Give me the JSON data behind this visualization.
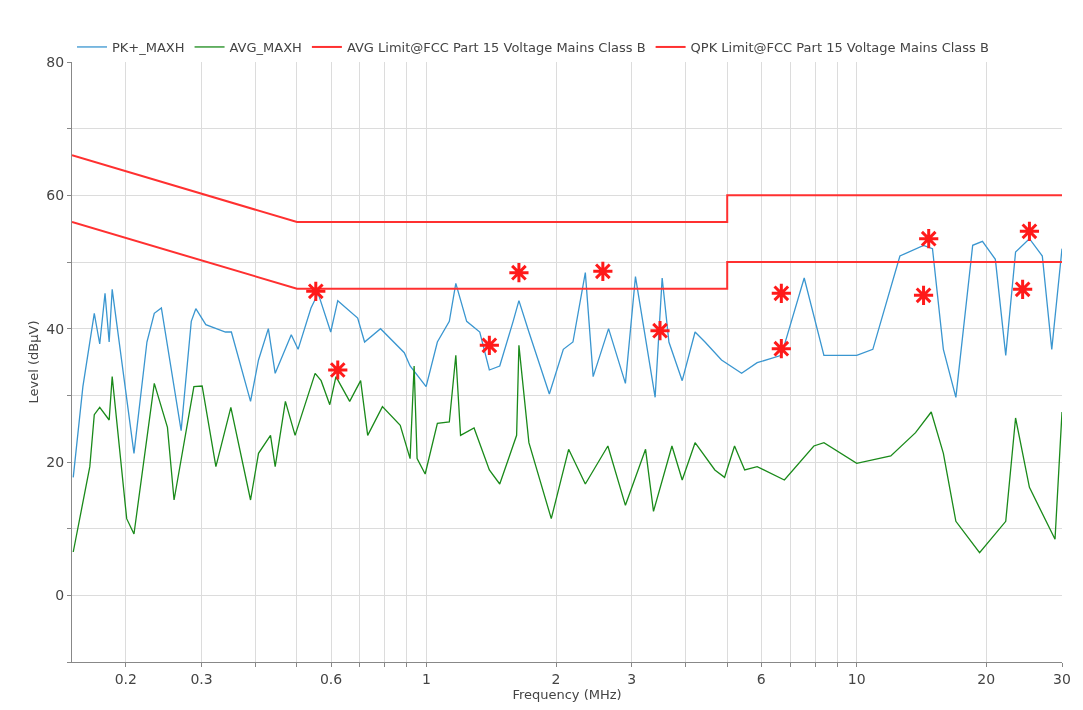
{
  "chart_data": {
    "type": "line",
    "xlabel": "Frequency (MHz)",
    "ylabel": "Level (dBµV)",
    "log": "x",
    "grid": true,
    "legend": "top left",
    "xlim": [
      0.15,
      30
    ],
    "ylim": [
      -10,
      80
    ],
    "xticks": [
      {
        "value": 0.2,
        "label": "0.2"
      },
      {
        "value": 0.3,
        "label": "0.3"
      },
      {
        "value": 0.4,
        "label": null
      },
      {
        "value": 0.5,
        "label": null
      },
      {
        "value": 0.6,
        "label": "0.6"
      },
      {
        "value": 0.7,
        "label": null
      },
      {
        "value": 0.8,
        "label": null
      },
      {
        "value": 0.9,
        "label": null
      },
      1,
      2,
      3,
      {
        "value": 4,
        "label": null
      },
      {
        "value": 5,
        "label": null
      },
      6,
      {
        "value": 7,
        "label": null
      },
      {
        "value": 8,
        "label": null
      },
      {
        "value": 9,
        "label": null
      },
      10,
      20,
      30
    ],
    "yticks": [
      {
        "value": -10,
        "label": null
      },
      0,
      {
        "value": 10,
        "label": null
      },
      20,
      {
        "value": 30,
        "label": null
      },
      40,
      {
        "value": 50,
        "label": null
      },
      60,
      {
        "value": 70,
        "label": null
      },
      80
    ],
    "series": [
      {
        "name": "PK+_MAXH",
        "color": "#3a96d0",
        "x": [
          0.151,
          0.159,
          0.169,
          0.174,
          0.179,
          0.183,
          0.186,
          0.209,
          0.224,
          0.233,
          0.242,
          0.269,
          0.284,
          0.291,
          0.307,
          0.341,
          0.352,
          0.39,
          0.407,
          0.429,
          0.445,
          0.485,
          0.503,
          0.539,
          0.56,
          0.599,
          0.622,
          0.692,
          0.718,
          0.782,
          0.888,
          0.916,
          0.998,
          1.06,
          1.13,
          1.17,
          1.24,
          1.33,
          1.4,
          1.48,
          1.59,
          1.64,
          1.73,
          1.93,
          2.08,
          2.19,
          2.34,
          2.44,
          2.65,
          2.9,
          3.06,
          3.4,
          3.53,
          3.66,
          3.93,
          4.21,
          4.44,
          4.85,
          5.4,
          5.87,
          6.68,
          7.55,
          8.39,
          10.0,
          10.9,
          12.6,
          14.3,
          15.0,
          15.9,
          17.0,
          18.6,
          19.6,
          21.0,
          22.2,
          23.4,
          25.2,
          27.0,
          28.4,
          30.0
        ],
        "values": [
          17.7,
          31.3,
          42.3,
          37.7,
          45.3,
          38.0,
          45.9,
          21.3,
          38.0,
          42.3,
          43.1,
          24.7,
          41.1,
          43.0,
          40.6,
          39.5,
          39.5,
          29.1,
          35.3,
          40.0,
          33.3,
          39.1,
          36.9,
          43.1,
          45.3,
          39.5,
          44.2,
          41.6,
          38.0,
          40.0,
          36.4,
          34.4,
          31.3,
          38.0,
          41.1,
          46.8,
          41.1,
          39.5,
          33.8,
          34.4,
          41.1,
          44.2,
          39.5,
          30.2,
          36.9,
          38.0,
          48.4,
          32.8,
          40.0,
          31.8,
          47.8,
          29.7,
          47.6,
          38.0,
          32.2,
          39.5,
          38.0,
          35.3,
          33.3,
          34.9,
          36.0,
          47.6,
          36.0,
          36.0,
          36.9,
          50.9,
          52.5,
          52.0,
          36.9,
          29.7,
          52.5,
          53.1,
          50.4,
          36.0,
          51.5,
          53.5,
          50.9,
          36.9,
          52.0
        ]
      },
      {
        "name": "AVG_MAXH",
        "color": "#1a8a1a",
        "x": [
          0.151,
          0.165,
          0.169,
          0.174,
          0.183,
          0.186,
          0.201,
          0.209,
          0.233,
          0.25,
          0.259,
          0.288,
          0.301,
          0.324,
          0.351,
          0.39,
          0.407,
          0.434,
          0.445,
          0.47,
          0.495,
          0.551,
          0.569,
          0.596,
          0.616,
          0.663,
          0.703,
          0.73,
          0.79,
          0.869,
          0.916,
          0.936,
          0.951,
          0.993,
          1.06,
          1.13,
          1.17,
          1.2,
          1.29,
          1.4,
          1.48,
          1.62,
          1.64,
          1.73,
          1.95,
          2.14,
          2.34,
          2.64,
          2.9,
          3.23,
          3.37,
          3.72,
          3.93,
          4.21,
          4.68,
          4.93,
          5.2,
          5.49,
          5.87,
          6.79,
          7.95,
          8.39,
          10.0,
          12.0,
          13.7,
          14.9,
          15.9,
          17.0,
          19.3,
          22.2,
          23.4,
          25.2,
          28.9,
          30.0
        ],
        "values": [
          6.5,
          19.3,
          27.1,
          28.2,
          26.3,
          32.8,
          11.5,
          9.2,
          31.8,
          25.2,
          14.3,
          31.3,
          31.4,
          19.3,
          28.2,
          14.3,
          21.3,
          24.0,
          19.3,
          29.1,
          24.0,
          33.3,
          32.2,
          28.6,
          32.8,
          29.1,
          32.2,
          24.0,
          28.3,
          25.5,
          20.5,
          34.4,
          20.5,
          18.2,
          25.8,
          26.0,
          36.0,
          24.0,
          25.1,
          18.8,
          16.7,
          24.0,
          37.5,
          22.9,
          11.5,
          21.9,
          16.7,
          22.4,
          13.5,
          21.9,
          12.6,
          22.4,
          17.3,
          22.9,
          18.8,
          17.7,
          22.4,
          18.8,
          19.3,
          17.3,
          22.4,
          22.9,
          19.8,
          20.9,
          24.4,
          27.5,
          21.3,
          11.1,
          6.4,
          11.1,
          26.6,
          16.2,
          8.4,
          27.5
        ]
      },
      {
        "name": "AVG Limit@FCC Part 15 Voltage Mains Class B",
        "color": "#ff3030",
        "type": "line",
        "x": [
          0.15,
          0.5,
          5,
          5,
          30
        ],
        "values": [
          56,
          46,
          46,
          50,
          50
        ]
      },
      {
        "name": "QPK Limit@FCC Part 15 Voltage Mains Class B",
        "color": "#ff3030",
        "type": "line",
        "x": [
          0.15,
          0.5,
          5,
          5,
          30
        ],
        "values": [
          66,
          56,
          56,
          60,
          60
        ]
      },
      {
        "color": "#ff1a1a",
        "type": "scatter",
        "marker": "cross",
        "x": [
          0.553,
          0.622,
          1.4,
          1.64,
          2.57,
          3.49,
          6.68,
          6.68,
          14.3,
          14.7,
          24.3,
          25.2
        ],
        "values": [
          45.6,
          33.8,
          37.5,
          48.4,
          48.6,
          39.7,
          45.3,
          37.0,
          45.0,
          53.5,
          45.9,
          54.6
        ]
      }
    ]
  }
}
